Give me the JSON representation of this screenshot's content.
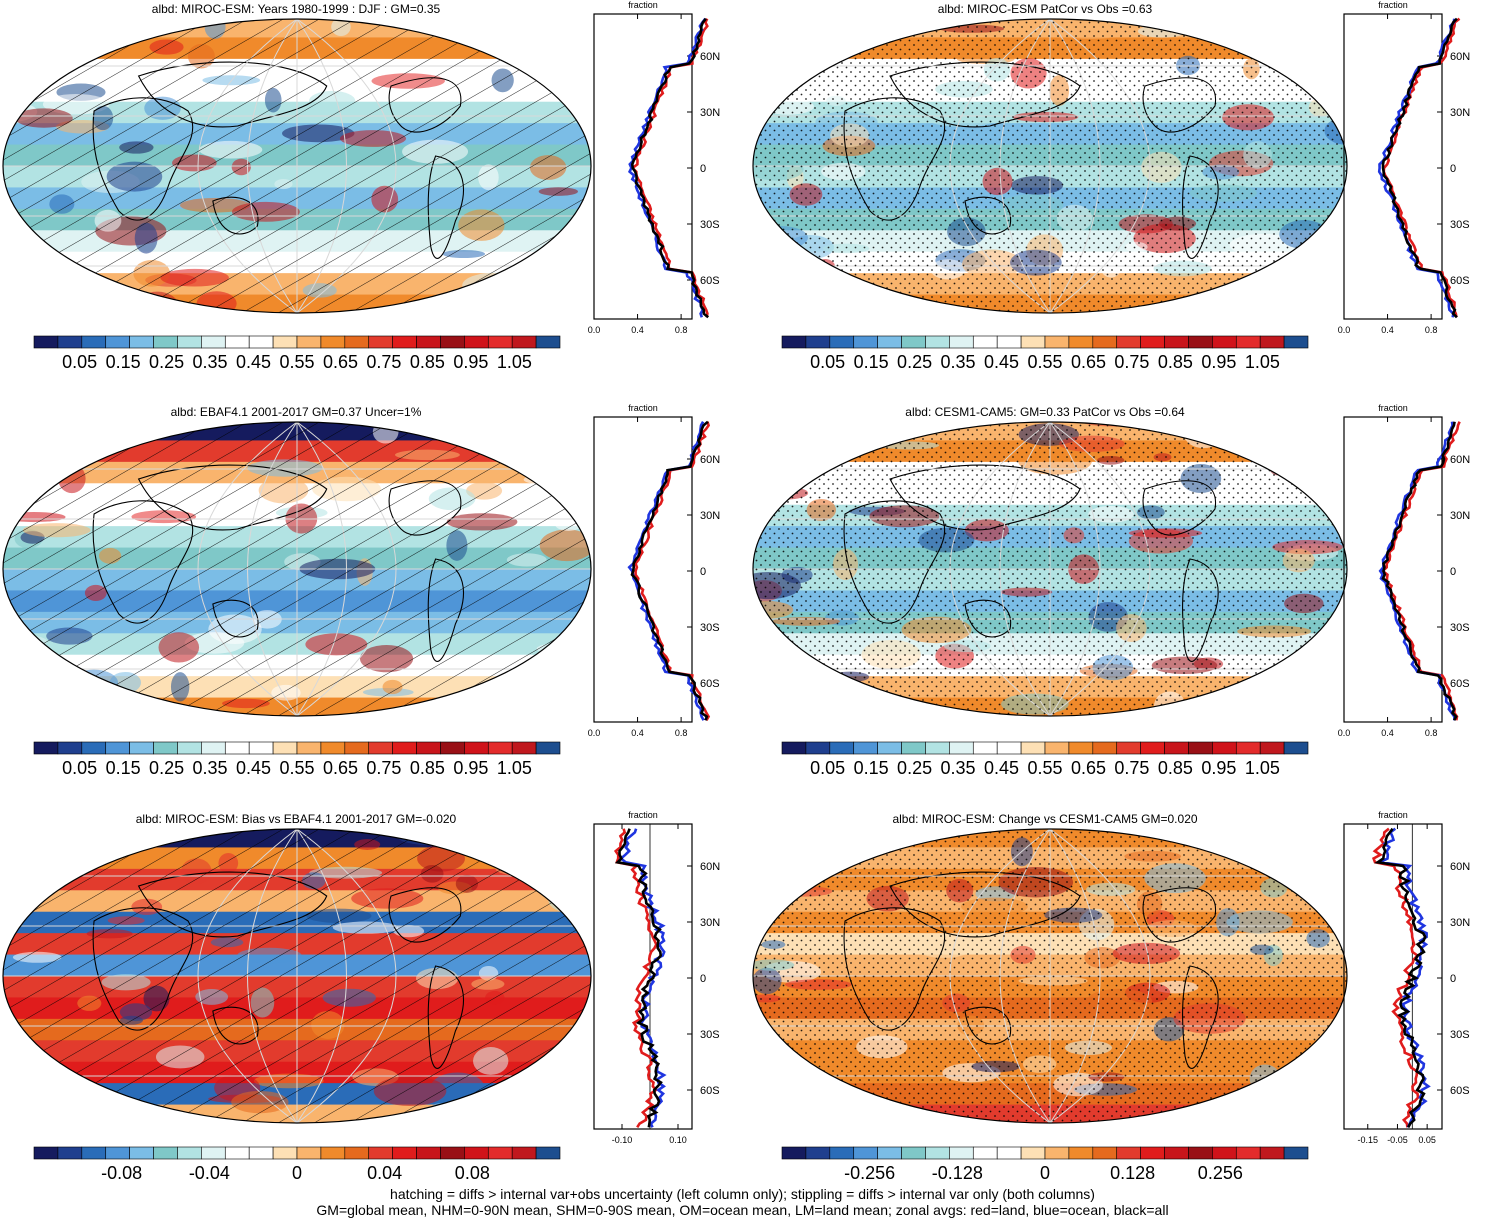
{
  "panels": [
    {
      "id": "p1",
      "title": "albd: MIROC-ESM: Years 1980-1999 : DJF : GM=0.35",
      "overlay": "hatch",
      "palette": "seq",
      "cbar_labels": [
        "0.05",
        "0.15",
        "0.25",
        "0.35",
        "0.45",
        "0.55",
        "0.65",
        "0.75",
        "0.85",
        "0.95",
        "1.05"
      ],
      "zonal": {
        "header": "fraction",
        "x_ticks": [
          "0.0",
          "0.4",
          "0.8"
        ],
        "y_ticks": [
          "60N",
          "30N",
          "0",
          "30S",
          "60S"
        ],
        "xlim": [
          0,
          0.9
        ]
      }
    },
    {
      "id": "p2",
      "title": "albd: MIROC-ESM PatCor vs Obs =0.63",
      "overlay": "stipple",
      "palette": "seq",
      "cbar_labels": [
        "0.05",
        "0.15",
        "0.25",
        "0.35",
        "0.45",
        "0.55",
        "0.65",
        "0.75",
        "0.85",
        "0.95",
        "1.05"
      ],
      "zonal": {
        "header": "fraction",
        "x_ticks": [
          "0.0",
          "0.4",
          "0.8"
        ],
        "y_ticks": [
          "60N",
          "30N",
          "0",
          "30S",
          "60S"
        ],
        "xlim": [
          0,
          0.9
        ]
      }
    },
    {
      "id": "p3",
      "title": "albd: EBAF4.1 2001-2017 GM=0.37 Uncer=1%",
      "overlay": "hatch",
      "palette": "seq",
      "cbar_labels": [
        "0.05",
        "0.15",
        "0.25",
        "0.35",
        "0.45",
        "0.55",
        "0.65",
        "0.75",
        "0.85",
        "0.95",
        "1.05"
      ],
      "zonal": {
        "header": "fraction",
        "x_ticks": [
          "0.0",
          "0.4",
          "0.8"
        ],
        "y_ticks": [
          "60N",
          "30N",
          "0",
          "30S",
          "60S"
        ],
        "xlim": [
          0,
          0.9
        ]
      }
    },
    {
      "id": "p4",
      "title": "albd: CESM1-CAM5: GM=0.33 PatCor vs Obs =0.64",
      "overlay": "stipple",
      "palette": "seq",
      "cbar_labels": [
        "0.05",
        "0.15",
        "0.25",
        "0.35",
        "0.45",
        "0.55",
        "0.65",
        "0.75",
        "0.85",
        "0.95",
        "1.05"
      ],
      "zonal": {
        "header": "fraction",
        "x_ticks": [
          "0.0",
          "0.4",
          "0.8"
        ],
        "y_ticks": [
          "60N",
          "30N",
          "0",
          "30S",
          "60S"
        ],
        "xlim": [
          0,
          0.9
        ]
      }
    },
    {
      "id": "p5",
      "title": "albd: MIROC-ESM: Bias vs EBAF4.1 2001-2017 GM=-0.020",
      "overlay": "hatch",
      "palette": "div",
      "cbar_labels": [
        "-0.08",
        "-0.04",
        "0",
        "0.04",
        "0.08"
      ],
      "zonal": {
        "header": "fraction",
        "x_ticks": [
          "-0.10",
          "0.10"
        ],
        "y_ticks": [
          "60N",
          "30N",
          "0",
          "30S",
          "60S"
        ],
        "xlim": [
          -0.2,
          0.15
        ]
      }
    },
    {
      "id": "p6",
      "title": "albd: MIROC-ESM: Change vs CESM1-CAM5 GM=0.020",
      "overlay": "stipple",
      "palette": "div",
      "cbar_labels": [
        "-0.256",
        "-0.128",
        "0",
        "0.128",
        "0.256"
      ],
      "zonal": {
        "header": "fraction",
        "x_ticks": [
          "-0.15",
          "-0.05",
          "0.05"
        ],
        "y_ticks": [
          "60N",
          "30N",
          "0",
          "30S",
          "60S"
        ],
        "xlim": [
          -0.23,
          0.1
        ]
      }
    }
  ],
  "colors": {
    "seq": [
      "#151b5e",
      "#1f3f8e",
      "#2a6cb8",
      "#4f95d7",
      "#7bbde6",
      "#7fc8c8",
      "#b2e3e3",
      "#dff3f3",
      "#ffffff",
      "#ffffff",
      "#fde0b5",
      "#f9b46d",
      "#f08a2b",
      "#e56a1e",
      "#e23b2d",
      "#e01c1c",
      "#c8151b",
      "#991016",
      "#d0131a",
      "#e32b2b",
      "#c0181e",
      "#1d4e8f"
    ],
    "div": [
      "#151b5e",
      "#1f3f8e",
      "#2a6cb8",
      "#4f95d7",
      "#7bbde6",
      "#7fc8c8",
      "#b2e3e3",
      "#dff3f3",
      "#ffffff",
      "#ffffff",
      "#fde0b5",
      "#f9b46d",
      "#f08a2b",
      "#e56a1e",
      "#e23b2d",
      "#e01c1c",
      "#c8151b",
      "#991016",
      "#d0131a",
      "#e32b2b",
      "#c0181e",
      "#1d4e8f"
    ],
    "land_line": "#e01c1c",
    "ocean_line": "#1f35e0",
    "all_line": "#000000"
  },
  "chart_data": {
    "type": "map",
    "variable": "albd",
    "panel_count": 6,
    "zonal_profile_series": [
      {
        "name": "red=land"
      },
      {
        "name": "blue=ocean"
      },
      {
        "name": "black=all"
      }
    ],
    "panel_values": {
      "MIROC-ESM DJF GM": 0.35,
      "MIROC-ESM PatCor vs Obs": 0.63,
      "EBAF4.1 GM": 0.37,
      "EBAF4.1 Uncer (%)": 1,
      "CESM1-CAM5 GM": 0.33,
      "CESM1-CAM5 PatCor vs Obs": 0.64,
      "Bias vs EBAF4.1 GM": -0.02,
      "Change vs CESM1-CAM5 GM": 0.02
    }
  },
  "footer": {
    "line1": "hatching = diffs > internal var+obs uncertainty (left column only); stippling = diffs > internal var only (both columns)",
    "line2": "GM=global mean, NHM=0-90N mean, SHM=0-90S mean, OM=ocean mean, LM=land mean; zonal avgs: red=land, blue=ocean, black=all"
  }
}
